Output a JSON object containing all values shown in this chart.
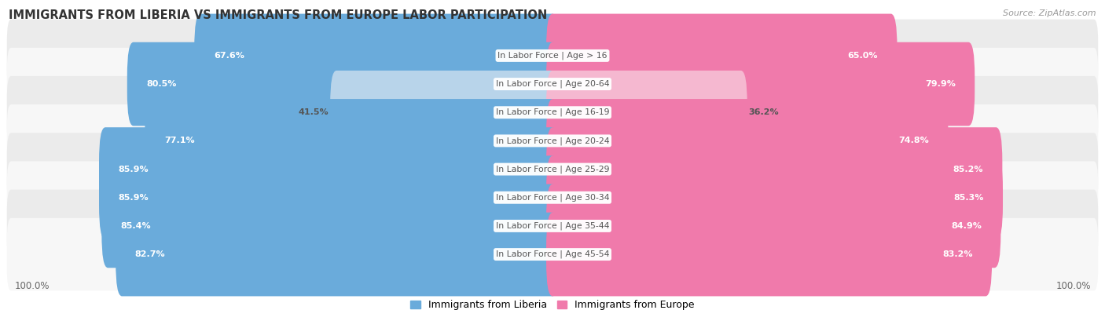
{
  "title": "IMMIGRANTS FROM LIBERIA VS IMMIGRANTS FROM EUROPE LABOR PARTICIPATION",
  "source": "Source: ZipAtlas.com",
  "categories": [
    "In Labor Force | Age > 16",
    "In Labor Force | Age 20-64",
    "In Labor Force | Age 16-19",
    "In Labor Force | Age 20-24",
    "In Labor Force | Age 25-29",
    "In Labor Force | Age 30-34",
    "In Labor Force | Age 35-44",
    "In Labor Force | Age 45-54"
  ],
  "liberia_values": [
    67.6,
    80.5,
    41.5,
    77.1,
    85.9,
    85.9,
    85.4,
    82.7
  ],
  "europe_values": [
    65.0,
    79.9,
    36.2,
    74.8,
    85.2,
    85.3,
    84.9,
    83.2
  ],
  "liberia_color": "#6aabdb",
  "liberia_color_light": "#b8d4ea",
  "europe_color": "#f07aab",
  "europe_color_light": "#f5b8d0",
  "row_bg_even": "#ebebeb",
  "row_bg_odd": "#f7f7f7",
  "max_value": 100.0,
  "legend_liberia": "Immigrants from Liberia",
  "legend_europe": "Immigrants from Europe",
  "center_label_color": "#555555",
  "value_text_white": "white",
  "value_text_dark": "#555555"
}
